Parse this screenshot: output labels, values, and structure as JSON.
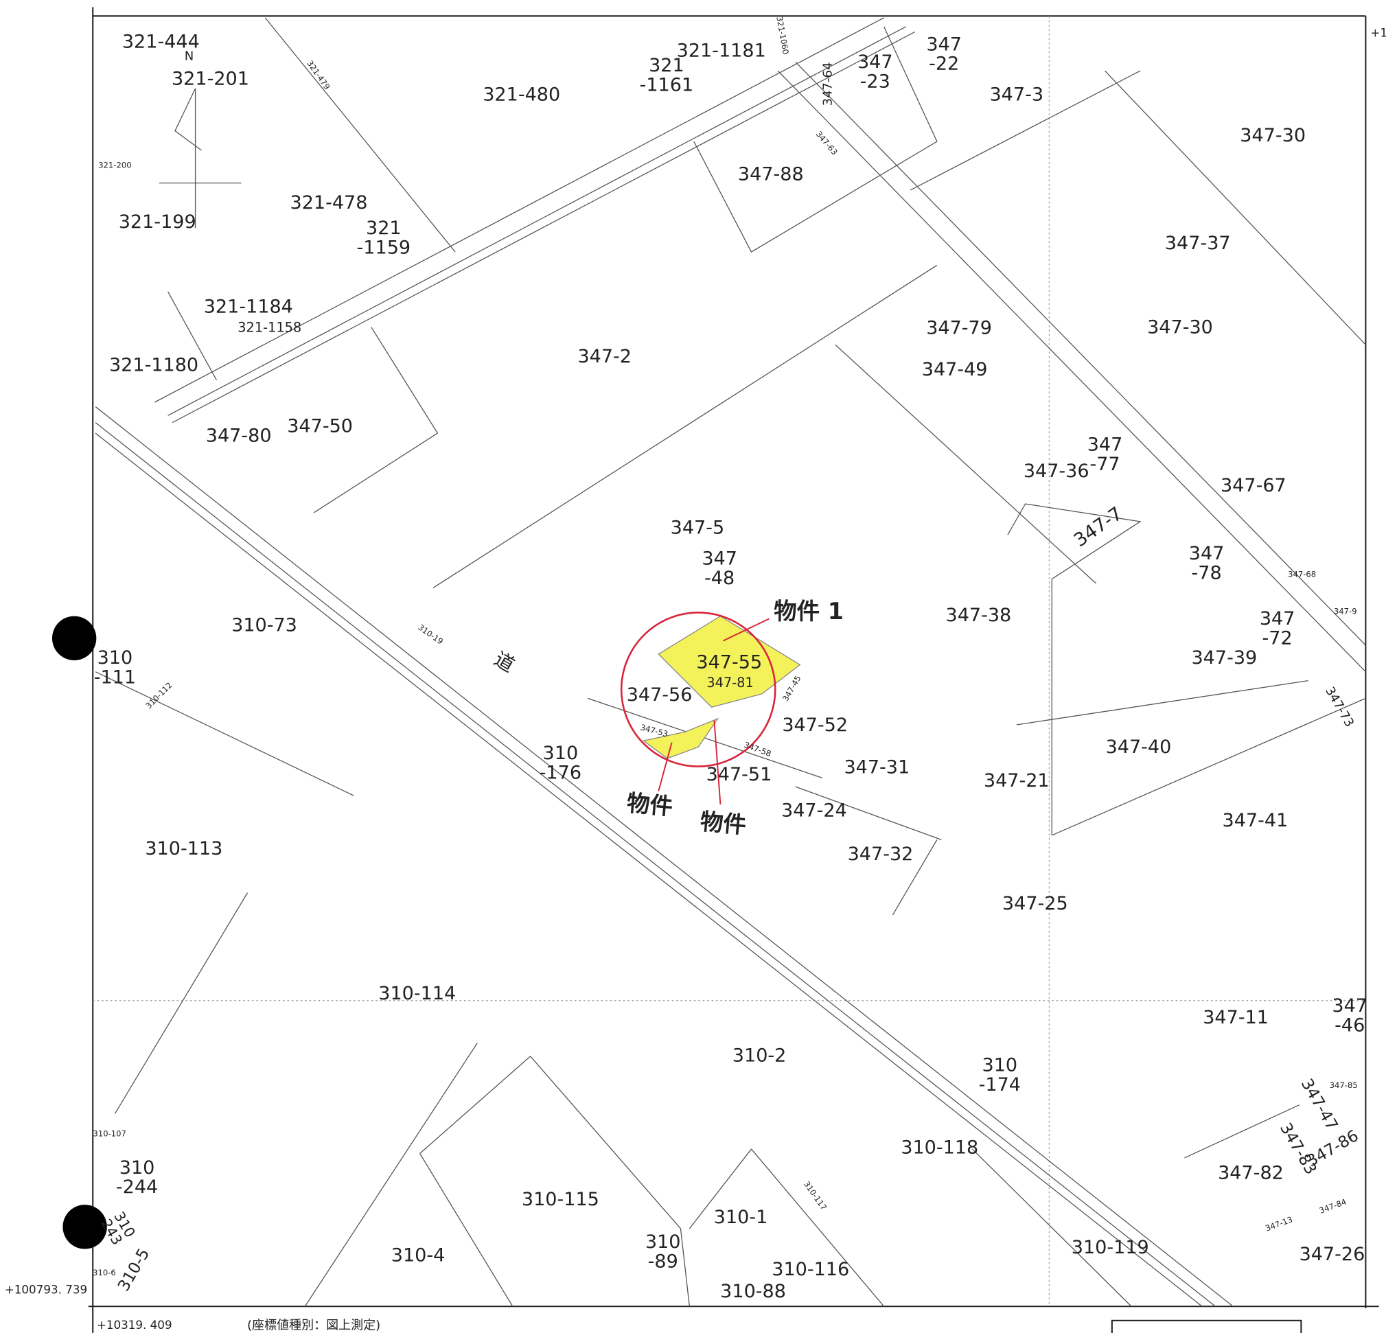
{
  "parcels": [
    "321-444",
    "N",
    "321-201",
    "321-480",
    "321-1181",
    [
      "321",
      "-1161"
    ],
    [
      "347",
      "-22"
    ],
    [
      "347",
      "-23"
    ],
    "347-3",
    "347-30",
    "347-88",
    "321-478",
    "321-199",
    [
      "321",
      "-1159"
    ],
    "347-37",
    "321-1184",
    "321-1158",
    "321-1180",
    "347-2",
    "347-79",
    "347-30",
    "347-49",
    "347-80",
    "347-50",
    "347-36",
    [
      "347",
      "-77"
    ],
    "347-67",
    "347-7",
    "347-5",
    [
      "347",
      "-48"
    ],
    [
      "347",
      "-78"
    ],
    "347-38",
    "310-73",
    [
      "310",
      "-111"
    ],
    "347-55",
    "347-81",
    [
      "347",
      "-72"
    ],
    "347-39",
    "347-56",
    "347-52",
    [
      "310",
      "-176"
    ],
    "347-51",
    "347-31",
    "347-21",
    "347-40",
    "347-41",
    "310-113",
    "347-24",
    "347-32",
    "347-25",
    "310-114",
    "347-11",
    [
      "347",
      "-46"
    ],
    "310-2",
    [
      "310",
      "-174"
    ],
    "310-118",
    "347-82",
    [
      "310",
      "-244"
    ],
    "310-115",
    "310-1",
    "310-119",
    "310-4",
    [
      "310",
      "-89"
    ],
    "310-116",
    "310-88",
    "347-26",
    "310-5",
    [
      "310",
      "243"
    ],
    "321-479",
    "321-1060",
    "347-64",
    "347-63",
    "321-200",
    "347-68",
    "347-9",
    "347-73",
    "310-112",
    "310-19",
    "347-53",
    "347-45",
    "347-58",
    "347-85",
    "347-47",
    "347-83",
    "347-86",
    "347-84",
    "347-13",
    "310-117",
    "310-107",
    "310-6"
  ],
  "annotations": {
    "property_1": "物件 1",
    "property_2": "物件",
    "property_3": "物件",
    "road": "道"
  },
  "coordinates": {
    "top_right": "+1",
    "left": "+100793. 739",
    "bottom": "+10319. 409",
    "note": "(座標値種別：図上測定)"
  }
}
